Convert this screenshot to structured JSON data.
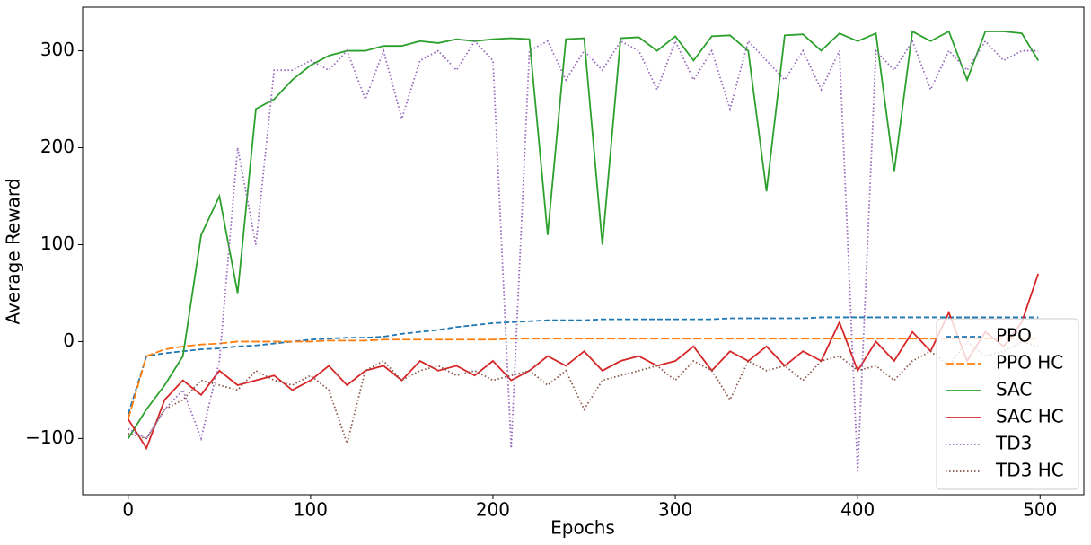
{
  "chart_data": {
    "type": "line",
    "x_label": "Epochs",
    "y_label": "Average Reward",
    "xlim": [
      -25,
      524
    ],
    "ylim": [
      -158,
      345
    ],
    "xticks": [
      0,
      100,
      200,
      300,
      400,
      500
    ],
    "yticks": [
      {
        "value": -100,
        "label": "−100"
      },
      0,
      100,
      200,
      300
    ],
    "grid": false,
    "legend": "lower right",
    "x": [
      0,
      10,
      20,
      30,
      40,
      50,
      60,
      70,
      80,
      90,
      100,
      110,
      120,
      130,
      140,
      150,
      160,
      170,
      180,
      190,
      200,
      210,
      220,
      230,
      240,
      250,
      260,
      270,
      280,
      290,
      300,
      310,
      320,
      330,
      340,
      350,
      360,
      370,
      380,
      390,
      400,
      410,
      420,
      430,
      440,
      450,
      460,
      470,
      480,
      490,
      499
    ],
    "series": [
      {
        "name": "PPO",
        "color": "#1f77b4",
        "style": "dashed",
        "values": [
          -75,
          -15,
          -12,
          -10,
          -8,
          -7,
          -5,
          -4,
          -2,
          0,
          2,
          3,
          4,
          4,
          5,
          8,
          10,
          12,
          15,
          17,
          19,
          20,
          21,
          22,
          22,
          22,
          23,
          23,
          23,
          23,
          23,
          23,
          23,
          24,
          24,
          24,
          24,
          24,
          25,
          25,
          25,
          25,
          25,
          25,
          25,
          25,
          25,
          25,
          25,
          25,
          25
        ]
      },
      {
        "name": "PPO HC",
        "color": "#ff7f0e",
        "style": "dashdot",
        "values": [
          -80,
          -15,
          -8,
          -5,
          -3,
          -2,
          0,
          0,
          0,
          0,
          0,
          1,
          1,
          1,
          2,
          2,
          2,
          2,
          2,
          2,
          2,
          3,
          3,
          3,
          3,
          3,
          3,
          3,
          3,
          3,
          3,
          3,
          3,
          3,
          3,
          3,
          3,
          3,
          3,
          3,
          3,
          3,
          3,
          3,
          3,
          3,
          3,
          3,
          3,
          3,
          3
        ]
      },
      {
        "name": "SAC",
        "color": "#2ca02c",
        "style": "solid",
        "values": [
          -100,
          -70,
          -45,
          -15,
          110,
          150,
          50,
          240,
          250,
          270,
          285,
          295,
          300,
          300,
          305,
          305,
          310,
          308,
          312,
          310,
          312,
          313,
          312,
          110,
          312,
          313,
          100,
          313,
          314,
          300,
          315,
          290,
          315,
          316,
          300,
          155,
          316,
          317,
          300,
          318,
          310,
          318,
          175,
          320,
          310,
          320,
          270,
          320,
          320,
          318,
          290
        ]
      },
      {
        "name": "SAC HC",
        "color": "#d62728",
        "style": "solid",
        "values": [
          -80,
          -110,
          -60,
          -40,
          -55,
          -30,
          -45,
          -40,
          -35,
          -50,
          -40,
          -25,
          -45,
          -30,
          -25,
          -40,
          -20,
          -30,
          -25,
          -35,
          -20,
          -40,
          -30,
          -15,
          -25,
          -10,
          -30,
          -20,
          -15,
          -25,
          -20,
          -5,
          -30,
          -10,
          -20,
          -5,
          -25,
          -10,
          -20,
          20,
          -30,
          0,
          -20,
          10,
          -10,
          30,
          -20,
          10,
          -5,
          20,
          70
        ]
      },
      {
        "name": "TD3",
        "color": "#9467bd",
        "style": "dotted",
        "values": [
          -90,
          -100,
          -70,
          -50,
          -100,
          -20,
          200,
          100,
          280,
          280,
          290,
          280,
          300,
          250,
          300,
          230,
          290,
          300,
          280,
          310,
          290,
          -110,
          300,
          310,
          270,
          300,
          280,
          310,
          300,
          260,
          310,
          270,
          300,
          240,
          310,
          290,
          270,
          300,
          260,
          300,
          -135,
          300,
          280,
          310,
          260,
          300,
          280,
          310,
          290,
          300,
          300
        ]
      },
      {
        "name": "TD3 HC",
        "color": "#8c564b",
        "style": "dotted",
        "values": [
          -95,
          -100,
          -70,
          -60,
          -40,
          -45,
          -50,
          -30,
          -40,
          -45,
          -35,
          -50,
          -105,
          -30,
          -20,
          -40,
          -30,
          -25,
          -35,
          -30,
          -40,
          -35,
          -30,
          -45,
          -30,
          -70,
          -40,
          -35,
          -30,
          -25,
          -40,
          -20,
          -30,
          -60,
          -20,
          -30,
          -25,
          -40,
          -20,
          -15,
          -30,
          -25,
          -40,
          -20,
          -10,
          -25,
          0,
          -15,
          -10,
          0,
          -5
        ]
      }
    ]
  }
}
